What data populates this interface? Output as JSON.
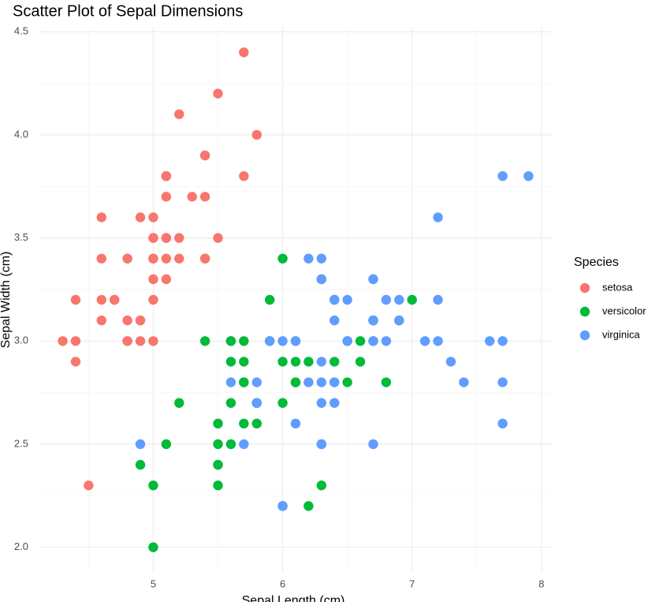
{
  "chart_data": {
    "type": "scatter",
    "title": "Scatter Plot of Sepal Dimensions",
    "x_label": "Sepal Length (cm)",
    "y_label": "Sepal Width (cm)",
    "legend_title": "Species",
    "legend_position": "right",
    "grid": true,
    "xlim": [
      4.12,
      8.08
    ],
    "ylim": [
      1.88,
      4.52
    ],
    "xticks": [
      5,
      6,
      7,
      8
    ],
    "yticks": [
      {
        "value": 2,
        "label": "2.0"
      },
      2.5,
      {
        "value": 3,
        "label": "3.0"
      },
      3.5,
      {
        "value": 4,
        "label": "4.0"
      },
      4.5
    ],
    "x_minor_ticks": [
      4.5,
      5.5,
      6.5,
      7.5
    ],
    "y_minor_ticks": [
      2.25,
      2.75,
      3.25,
      3.75,
      4.25
    ],
    "series": [
      {
        "name": "setosa",
        "color": "#F8766D",
        "x": [
          5.1,
          4.9,
          4.7,
          4.6,
          5.0,
          5.4,
          4.6,
          5.0,
          4.4,
          4.9,
          5.4,
          4.8,
          4.8,
          4.3,
          5.8,
          5.7,
          5.4,
          5.1,
          5.7,
          5.1,
          5.4,
          5.1,
          4.6,
          5.1,
          4.8,
          5.0,
          5.0,
          5.2,
          5.2,
          4.7,
          4.8,
          5.4,
          5.2,
          5.5,
          4.9,
          5.0,
          5.5,
          4.9,
          4.4,
          5.1,
          5.0,
          4.5,
          4.4,
          5.0,
          5.1,
          4.8,
          5.1,
          4.6,
          5.3,
          5.0
        ],
        "values": [
          3.5,
          3.0,
          3.2,
          3.1,
          3.6,
          3.9,
          3.4,
          3.4,
          2.9,
          3.1,
          3.7,
          3.4,
          3.0,
          3.0,
          4.0,
          4.4,
          3.9,
          3.5,
          3.8,
          3.8,
          3.4,
          3.7,
          3.6,
          3.3,
          3.4,
          3.0,
          3.4,
          3.5,
          3.4,
          3.2,
          3.1,
          3.4,
          4.1,
          4.2,
          3.1,
          3.2,
          3.5,
          3.6,
          3.0,
          3.4,
          3.5,
          2.3,
          3.2,
          3.5,
          3.8,
          3.0,
          3.8,
          3.2,
          3.7,
          3.3
        ]
      },
      {
        "name": "versicolor",
        "color": "#00BA38",
        "x": [
          7.0,
          6.4,
          6.9,
          5.5,
          6.5,
          5.7,
          6.3,
          4.9,
          6.6,
          5.2,
          5.0,
          5.9,
          6.0,
          6.1,
          5.6,
          6.7,
          5.6,
          5.8,
          6.2,
          5.6,
          5.9,
          6.1,
          6.3,
          6.1,
          6.4,
          6.6,
          6.8,
          6.7,
          6.0,
          5.7,
          5.5,
          5.5,
          5.8,
          6.0,
          5.4,
          6.0,
          6.7,
          6.3,
          5.6,
          5.5,
          5.5,
          6.1,
          5.8,
          5.0,
          5.6,
          5.7,
          5.7,
          6.2,
          5.1,
          5.7
        ],
        "values": [
          3.2,
          3.2,
          3.1,
          2.3,
          2.8,
          2.8,
          3.3,
          2.4,
          2.9,
          2.7,
          2.0,
          3.0,
          2.2,
          2.9,
          2.9,
          3.1,
          3.0,
          2.7,
          2.2,
          2.5,
          3.2,
          2.8,
          2.5,
          2.8,
          2.9,
          3.0,
          2.8,
          3.0,
          2.9,
          2.6,
          2.4,
          2.4,
          2.7,
          2.7,
          3.0,
          3.4,
          3.1,
          2.3,
          3.0,
          2.5,
          2.6,
          3.0,
          2.6,
          2.3,
          2.7,
          3.0,
          2.9,
          2.9,
          2.5,
          2.8
        ]
      },
      {
        "name": "virginica",
        "color": "#619CFF",
        "x": [
          6.3,
          5.8,
          7.1,
          6.3,
          6.5,
          7.6,
          4.9,
          7.3,
          6.7,
          7.2,
          6.5,
          6.4,
          6.8,
          5.7,
          5.8,
          6.4,
          6.5,
          7.7,
          7.7,
          6.0,
          6.9,
          5.6,
          7.7,
          6.3,
          6.7,
          7.2,
          6.2,
          6.1,
          6.4,
          7.2,
          7.4,
          7.9,
          6.4,
          6.3,
          6.1,
          7.7,
          6.3,
          6.4,
          6.0,
          6.9,
          6.7,
          6.9,
          5.8,
          6.8,
          6.7,
          6.7,
          6.3,
          6.5,
          6.2,
          5.9
        ],
        "values": [
          3.3,
          2.7,
          3.0,
          2.9,
          3.0,
          3.0,
          2.5,
          2.9,
          2.5,
          3.6,
          3.2,
          2.7,
          3.0,
          2.5,
          2.8,
          3.2,
          3.0,
          3.8,
          2.6,
          2.2,
          3.2,
          2.8,
          2.8,
          2.7,
          3.3,
          3.2,
          2.8,
          3.0,
          2.8,
          3.0,
          2.8,
          3.8,
          2.8,
          2.8,
          2.6,
          3.0,
          3.4,
          3.1,
          3.0,
          3.1,
          3.1,
          3.1,
          2.7,
          3.2,
          3.3,
          3.0,
          2.5,
          3.0,
          3.4,
          3.0
        ]
      }
    ]
  }
}
